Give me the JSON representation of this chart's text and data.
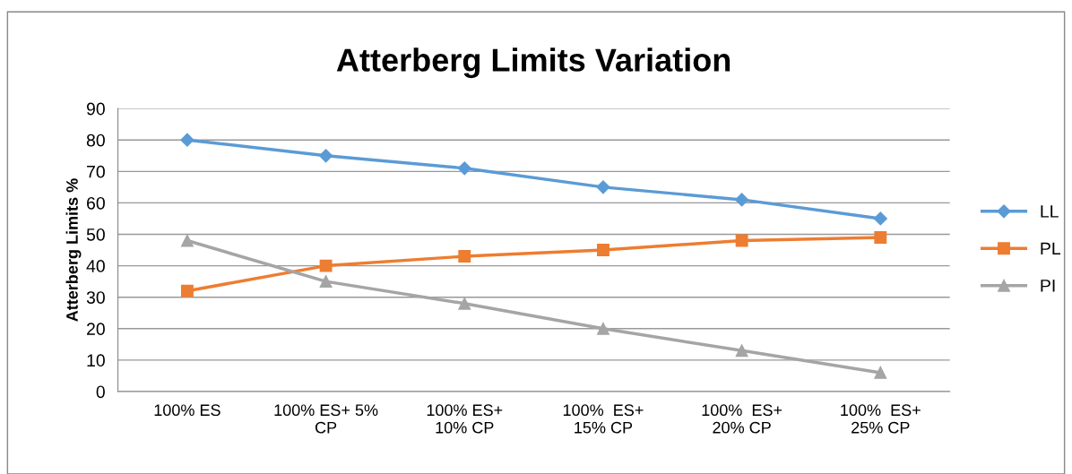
{
  "chart_data": {
    "type": "line",
    "title": "Atterberg Limits Variation",
    "ylabel": "Atterberg Limits %",
    "categories": [
      "100% ES",
      "100% ES+ 5%\nCP",
      "100% ES+\n10% CP",
      "100%  ES+\n15% CP",
      "100%  ES+\n20% CP",
      "100%  ES+\n25% CP"
    ],
    "series": [
      {
        "name": "LL",
        "color": "#5b9bd5",
        "marker": "diamond",
        "values": [
          80,
          75,
          71,
          65,
          61,
          55
        ]
      },
      {
        "name": "PL",
        "color": "#ed7d31",
        "marker": "square",
        "values": [
          32,
          40,
          43,
          45,
          48,
          49
        ]
      },
      {
        "name": "PI",
        "color": "#a5a5a5",
        "marker": "triangle",
        "values": [
          48,
          35,
          28,
          20,
          13,
          6
        ]
      }
    ],
    "ylim": [
      0,
      90
    ],
    "yticks": [
      0,
      10,
      20,
      30,
      40,
      50,
      60,
      70,
      80,
      90
    ],
    "grid": "y",
    "legend": "right",
    "line_style": "solid"
  }
}
